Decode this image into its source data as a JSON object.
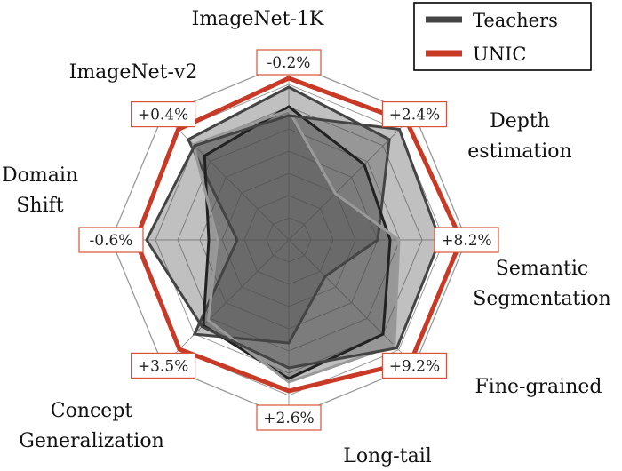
{
  "chart_data": {
    "type": "radar",
    "axes": [
      {
        "label": [
          "ImageNet-1K"
        ],
        "delta": "-0.2%"
      },
      {
        "label": [
          "Depth",
          "estimation"
        ],
        "delta": "+2.4%"
      },
      {
        "label": [
          "Semantic",
          "Segmentation"
        ],
        "delta": "+8.2%"
      },
      {
        "label": [
          "Fine-grained"
        ],
        "delta": "+9.2%"
      },
      {
        "label": [
          "Long-tail"
        ],
        "delta": "+2.6%"
      },
      {
        "label": [
          "Concept",
          "Generalization"
        ],
        "delta": "+3.5%"
      },
      {
        "label": [
          "Domain",
          "Shift"
        ],
        "delta": "-0.6%"
      },
      {
        "label": [
          "ImageNet-v2"
        ],
        "delta": "+0.4%"
      }
    ],
    "rlim": [
      0,
      1
    ],
    "grid_rings": 8,
    "legend": {
      "placement": "top-right",
      "items": [
        {
          "name": "Teachers",
          "color": "#444444"
        },
        {
          "name": "UNIC",
          "color": "#c83a26"
        }
      ]
    },
    "series": [
      {
        "role": "teacher",
        "values": [
          0.86,
          0.8,
          0.5,
          0.29,
          0.58,
          0.75,
          0.29,
          0.8
        ],
        "fill": "#4a4a4a",
        "fill_opacity": 0.35,
        "stroke": "#444444",
        "stroke_width": 3
      },
      {
        "role": "teacher",
        "values": [
          0.75,
          0.6,
          0.57,
          0.75,
          0.78,
          0.68,
          0.45,
          0.67
        ],
        "fill": "#4a4a4a",
        "fill_opacity": 0.35,
        "stroke": "#222222",
        "stroke_width": 3
      },
      {
        "role": "teacher",
        "values": [
          0.73,
          0.37,
          0.62,
          0.84,
          0.8,
          0.64,
          0.4,
          0.76
        ],
        "fill": "#4a4a4a",
        "fill_opacity": 0.35,
        "stroke": "#999999",
        "stroke_width": 3
      },
      {
        "role": "teacher",
        "values": [
          0.7,
          0.88,
          0.85,
          0.86,
          0.72,
          0.69,
          0.8,
          0.75
        ],
        "fill": "#4a4a4a",
        "fill_opacity": 0.35,
        "stroke": "#444444",
        "stroke_width": 3
      },
      {
        "name": "UNIC",
        "values": [
          0.91,
          0.94,
          0.97,
          0.97,
          0.85,
          0.87,
          0.86,
          0.88
        ],
        "fill": "none",
        "fill_opacity": 0,
        "stroke": "#c83a26",
        "stroke_width": 5
      }
    ],
    "colors": {
      "grid": "#9a9a9a",
      "delta_border": "#d9533a",
      "unic": "#c83a26",
      "teacher": "#444444"
    }
  }
}
